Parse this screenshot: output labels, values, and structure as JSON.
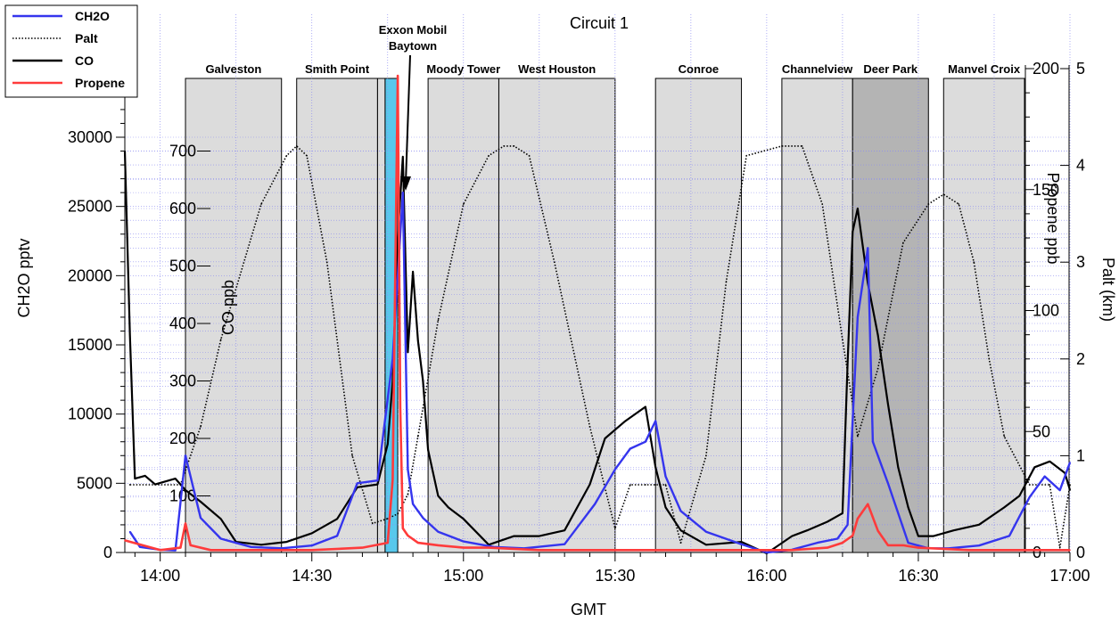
{
  "chart_data": {
    "type": "line",
    "title": "Circuit 1",
    "xlabel": "GMT",
    "x_ticks": [
      "14:00",
      "14:30",
      "15:00",
      "15:30",
      "16:00",
      "16:30",
      "17:00"
    ],
    "xlim": [
      "13:53",
      "17:00"
    ],
    "grid": true,
    "legend_position": "top-left",
    "legend": [
      {
        "name": "CH2O",
        "color": "#3535ee",
        "style": "solid"
      },
      {
        "name": "Palt",
        "color": "#000000",
        "style": "dotted"
      },
      {
        "name": "CO",
        "color": "#000000",
        "style": "solid"
      },
      {
        "name": "Propene",
        "color": "#ff3b3b",
        "style": "solid"
      }
    ],
    "axes": {
      "ch2o": {
        "label": "CH2O pptv",
        "range": [
          0,
          30000
        ],
        "ticks": [
          0,
          5000,
          10000,
          15000,
          20000,
          25000,
          30000
        ]
      },
      "co": {
        "label": "CO ppb",
        "range": [
          0,
          700
        ],
        "ticks": [
          100,
          200,
          300,
          400,
          500,
          600,
          700
        ]
      },
      "propene": {
        "label": "Propene ppb",
        "range": [
          0,
          200
        ],
        "ticks": [
          0,
          50,
          100,
          150,
          200
        ]
      },
      "palt": {
        "label": "Palt (km)",
        "range": [
          0,
          5
        ],
        "ticks": [
          0,
          1,
          2,
          3,
          4,
          5
        ]
      }
    },
    "regions": [
      {
        "name": "Galveston",
        "start": "14:05",
        "end": "14:24",
        "shade": "#dcdcdc"
      },
      {
        "name": "Smith Point",
        "start": "14:27",
        "end": "14:43",
        "shade": "#dcdcdc"
      },
      {
        "name": "",
        "start": "14:43",
        "end": "14:44.5",
        "shade": "#dcdcdc"
      },
      {
        "name": "",
        "start": "14:44.5",
        "end": "14:47",
        "shade": "#58c8ec"
      },
      {
        "name": "Moody Tower",
        "start": "14:53",
        "end": "15:07",
        "shade": "#dcdcdc"
      },
      {
        "name": "West Houston",
        "start": "15:07",
        "end": "15:30",
        "shade": "#dcdcdc"
      },
      {
        "name": "Conroe",
        "start": "15:38",
        "end": "15:55",
        "shade": "#dcdcdc"
      },
      {
        "name": "Channelview",
        "start": "16:03",
        "end": "16:17",
        "shade": "#dcdcdc"
      },
      {
        "name": "Deer Park",
        "start": "16:17",
        "end": "16:32",
        "shade": "#b4b4b4"
      },
      {
        "name": "Manvel Croix",
        "start": "16:35",
        "end": "16:51",
        "shade": "#dcdcdc"
      }
    ],
    "annotation": {
      "text": [
        "Exxon Mobil",
        "Baytown"
      ],
      "x": "14:48"
    },
    "series": [
      {
        "name": "CH2O",
        "axis": "ch2o",
        "x": [
          "13:54",
          "13:56",
          "14:00",
          "14:03",
          "14:05",
          "14:08",
          "14:12",
          "14:18",
          "14:24",
          "14:30",
          "14:35",
          "14:39",
          "14:43",
          "14:46",
          "14:48",
          "14:49",
          "14:50",
          "14:52",
          "14:55",
          "15:00",
          "15:06",
          "15:12",
          "15:20",
          "15:26",
          "15:30",
          "15:33",
          "15:36",
          "15:38",
          "15:40",
          "15:43",
          "15:48",
          "15:55",
          "16:00",
          "16:05",
          "16:10",
          "16:14",
          "16:16",
          "16:18",
          "16:20",
          "16:21",
          "16:24",
          "16:28",
          "16:32",
          "16:36",
          "16:42",
          "16:48",
          "16:52",
          "16:55",
          "16:58",
          "17:00"
        ],
        "values": [
          1500,
          400,
          200,
          150,
          7000,
          2500,
          1000,
          400,
          300,
          500,
          1200,
          5000,
          5200,
          14000,
          26000,
          6000,
          3500,
          2500,
          1500,
          800,
          400,
          300,
          600,
          3500,
          6000,
          7500,
          8000,
          9500,
          5500,
          3000,
          1500,
          600,
          0,
          200,
          700,
          1000,
          2000,
          17000,
          22000,
          8000,
          5000,
          700,
          300,
          300,
          500,
          1200,
          4000,
          5500,
          4500,
          6500
        ]
      },
      {
        "name": "Palt",
        "axis": "palt",
        "x": [
          "13:54",
          "14:04",
          "14:08",
          "14:12",
          "14:20",
          "14:25",
          "14:27",
          "14:29",
          "14:33",
          "14:38",
          "14:42",
          "14:45",
          "14:47",
          "14:49",
          "14:51",
          "14:55",
          "15:00",
          "15:05",
          "15:08",
          "15:10",
          "15:13",
          "15:18",
          "15:25",
          "15:30",
          "15:33",
          "15:36",
          "15:38",
          "15:40",
          "15:43",
          "15:48",
          "15:52",
          "15:56",
          "16:03",
          "16:07",
          "16:11",
          "16:15",
          "16:18",
          "16:22",
          "16:27",
          "16:32",
          "16:35",
          "16:38",
          "16:41",
          "16:44",
          "16:47",
          "16:52",
          "16:56",
          "16:58",
          "17:00"
        ],
        "values": [
          0.7,
          0.7,
          1.3,
          2.2,
          3.6,
          4.1,
          4.2,
          4.1,
          3.0,
          1.0,
          0.3,
          0.35,
          0.4,
          0.6,
          1.2,
          2.4,
          3.6,
          4.1,
          4.2,
          4.2,
          4.1,
          3.0,
          1.3,
          0.25,
          0.7,
          0.7,
          0.7,
          0.7,
          0.1,
          1.0,
          2.8,
          4.1,
          4.2,
          4.2,
          3.6,
          2.2,
          1.2,
          1.9,
          3.2,
          3.6,
          3.7,
          3.6,
          3.0,
          2.0,
          1.2,
          0.7,
          0.7,
          0.05,
          0.7
        ]
      },
      {
        "name": "CO",
        "axis": "co",
        "x": [
          "13:53",
          "13:54",
          "13:55",
          "13:57",
          "13:59",
          "14:03",
          "14:05",
          "14:08",
          "14:12",
          "14:15",
          "14:20",
          "14:25",
          "14:30",
          "14:35",
          "14:39",
          "14:43",
          "14:45",
          "14:46",
          "14:47",
          "14:48",
          "14:49",
          "14:50",
          "14:51",
          "14:52",
          "14:53",
          "14:55",
          "14:57",
          "15:00",
          "15:05",
          "15:10",
          "15:15",
          "15:20",
          "15:25",
          "15:28",
          "15:32",
          "15:36",
          "15:38",
          "15:40",
          "15:43",
          "15:48",
          "15:55",
          "16:00",
          "16:05",
          "16:08",
          "16:12",
          "16:15",
          "16:16",
          "16:17",
          "16:18",
          "16:20",
          "16:22",
          "16:24",
          "16:26",
          "16:28",
          "16:30",
          "16:33",
          "16:37",
          "16:42",
          "16:47",
          "16:50",
          "16:53",
          "16:56",
          "16:59",
          "17:00"
        ],
        "values": [
          700,
          380,
          130,
          135,
          120,
          130,
          110,
          90,
          60,
          20,
          15,
          20,
          35,
          60,
          115,
          120,
          190,
          300,
          550,
          690,
          350,
          490,
          370,
          300,
          180,
          100,
          80,
          60,
          15,
          30,
          30,
          40,
          120,
          200,
          230,
          255,
          150,
          80,
          40,
          15,
          20,
          0,
          30,
          40,
          55,
          70,
          330,
          560,
          600,
          470,
          380,
          260,
          150,
          80,
          30,
          30,
          40,
          50,
          80,
          100,
          150,
          160,
          140,
          110
        ]
      },
      {
        "name": "Propene",
        "axis": "propene",
        "x": [
          "13:53",
          "14:00",
          "14:04",
          "14:05",
          "14:06",
          "14:10",
          "14:20",
          "14:30",
          "14:40",
          "14:45",
          "14:46",
          "14:47",
          "14:47.5",
          "14:48",
          "14:49",
          "14:51",
          "14:55",
          "15:00",
          "15:05",
          "15:15",
          "15:25",
          "15:35",
          "15:45",
          "15:55",
          "16:05",
          "16:12",
          "16:15",
          "16:17",
          "16:18",
          "16:20",
          "16:22",
          "16:24",
          "16:27",
          "16:30",
          "16:40",
          "16:50",
          "17:00"
        ],
        "values": [
          5,
          1,
          2,
          12,
          3,
          1,
          1,
          1,
          2,
          4,
          30,
          197,
          60,
          10,
          7,
          4,
          3,
          2,
          2,
          1,
          1,
          1,
          1,
          1,
          1,
          2,
          4,
          7,
          14,
          20,
          9,
          3,
          3,
          2,
          1,
          1,
          1
        ]
      }
    ]
  }
}
